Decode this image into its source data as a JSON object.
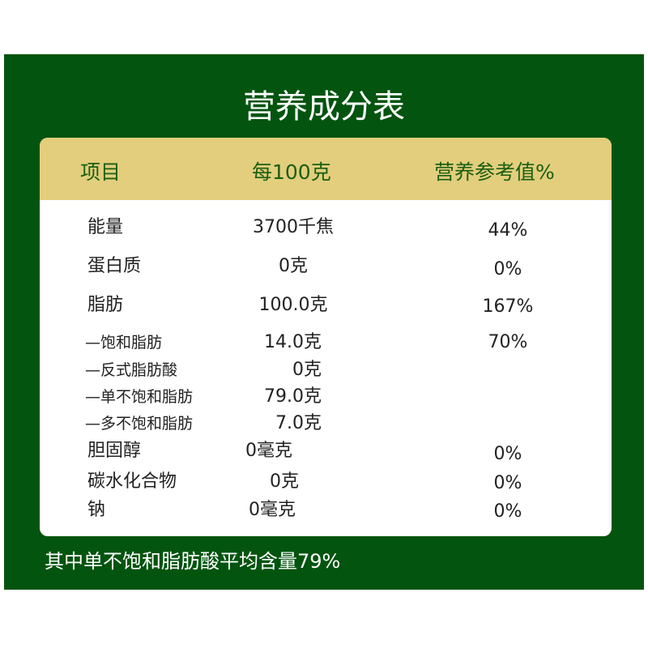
{
  "title": "营养成分表",
  "header": {
    "item": "项目",
    "per100": "每100克",
    "nrv": "营养参考值%"
  },
  "rows": [
    {
      "name": "能量",
      "value": "3700千焦",
      "nrv": "44%"
    },
    {
      "name": "蛋白质",
      "value": "0克",
      "nrv": "0%"
    },
    {
      "name": "脂肪",
      "value": "100.0克",
      "nrv": "167%"
    },
    {
      "name": "—饱和脂肪",
      "value": "14.0克",
      "nrv": "70%"
    },
    {
      "name": "—反式脂肪酸",
      "value": "0克",
      "nrv": ""
    },
    {
      "name": "—单不饱和脂肪",
      "value": "79.0克",
      "nrv": ""
    },
    {
      "name": "—多不饱和脂肪",
      "value": "7.0克",
      "nrv": ""
    },
    {
      "name": "胆固醇",
      "value": "0毫克",
      "nrv": "0%"
    },
    {
      "name": "碳水化合物",
      "value": "0克",
      "nrv": "0%"
    },
    {
      "name": "钠",
      "value": "0毫克",
      "nrv": "0%"
    }
  ],
  "footer": "其中单不饱和脂肪酸平均含量79%",
  "colors": {
    "background": "#03540f",
    "header": "#e2ce7c",
    "header_text": "#1b5e12"
  }
}
